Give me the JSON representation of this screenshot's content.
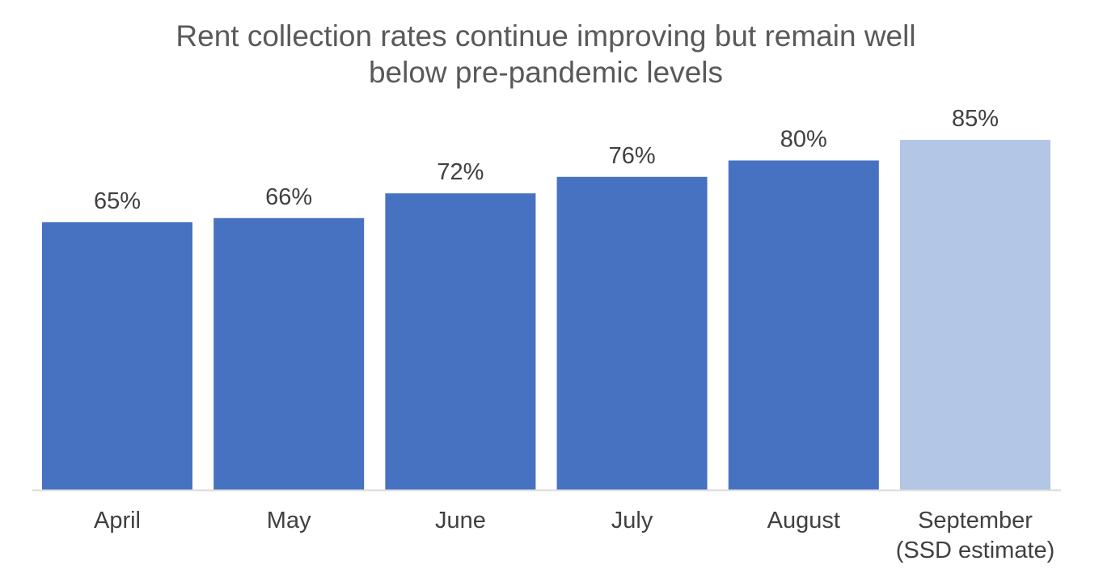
{
  "chart_data": {
    "type": "bar",
    "title_lines": [
      "Rent collection rates continue improving but remain well",
      "below pre-pandemic levels"
    ],
    "categories": [
      [
        "April"
      ],
      [
        "May"
      ],
      [
        "June"
      ],
      [
        "July"
      ],
      [
        "August"
      ],
      [
        "September",
        "(SSD estimate)"
      ]
    ],
    "values": [
      65,
      66,
      72,
      76,
      80,
      85
    ],
    "data_labels": [
      "65%",
      "66%",
      "72%",
      "76%",
      "80%",
      "85%"
    ],
    "bar_colors": [
      "#4672C1",
      "#4672C1",
      "#4672C1",
      "#4672C1",
      "#4672C1",
      "#B4C6E6"
    ],
    "axis_color": "#D9D9D9",
    "ylim": [
      0,
      85
    ],
    "grid": false,
    "legend": "none",
    "xlabel": "",
    "ylabel": ""
  }
}
